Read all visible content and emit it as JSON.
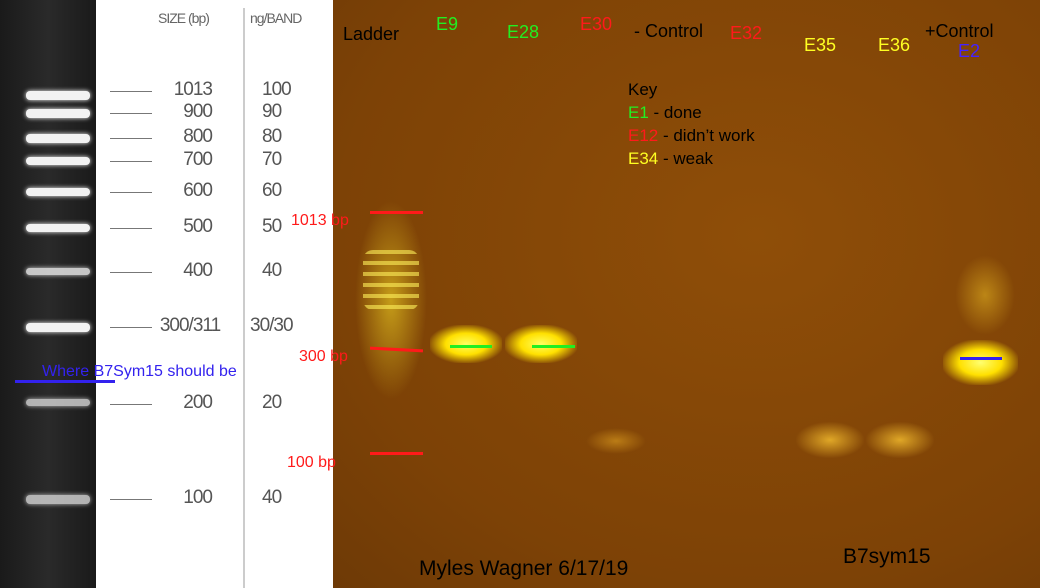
{
  "reference_ladder": {
    "size_header": "SIZE (bp)",
    "ng_header": "ng/BAND",
    "rows": [
      {
        "size": "1013",
        "ng": "100"
      },
      {
        "size": "900",
        "ng": "90"
      },
      {
        "size": "800",
        "ng": "80"
      },
      {
        "size": "700",
        "ng": "70"
      },
      {
        "size": "600",
        "ng": "60"
      },
      {
        "size": "500",
        "ng": "50"
      },
      {
        "size": "400",
        "ng": "40"
      },
      {
        "size": "300/311",
        "ng": "30/30"
      },
      {
        "size": "200",
        "ng": "20"
      },
      {
        "size": "100",
        "ng": "40"
      }
    ],
    "annotation": "Where B7Sym15 should be"
  },
  "gel": {
    "lanes": [
      {
        "label": "Ladder",
        "color": "#000000"
      },
      {
        "label": "E9",
        "color": "#22ee22"
      },
      {
        "label": "E28",
        "color": "#22ee22"
      },
      {
        "label": "E30",
        "color": "#ff1a1a"
      },
      {
        "label": "- Control",
        "color": "#000000"
      },
      {
        "label": "E32",
        "color": "#ff1a1a"
      },
      {
        "label": "E35",
        "color": "#ffff22"
      },
      {
        "label": "E36",
        "color": "#ffff22"
      },
      {
        "label": "+Control",
        "color": "#000000"
      },
      {
        "label": "E2",
        "color": "#4422ff"
      }
    ],
    "key": {
      "title": "Key",
      "items": [
        {
          "code": "E1",
          "text": " - done",
          "color": "#22ee22"
        },
        {
          "code": "E12",
          "text": " - didn’t work",
          "color": "#ff1a1a"
        },
        {
          "code": "E34",
          "text": " - weak",
          "color": "#ffff22"
        }
      ]
    },
    "markers": [
      "1013 bp",
      "300 bp",
      "100 bp"
    ],
    "footer_left": "Myles Wagner 6/17/19",
    "footer_right": "B7sym15"
  }
}
